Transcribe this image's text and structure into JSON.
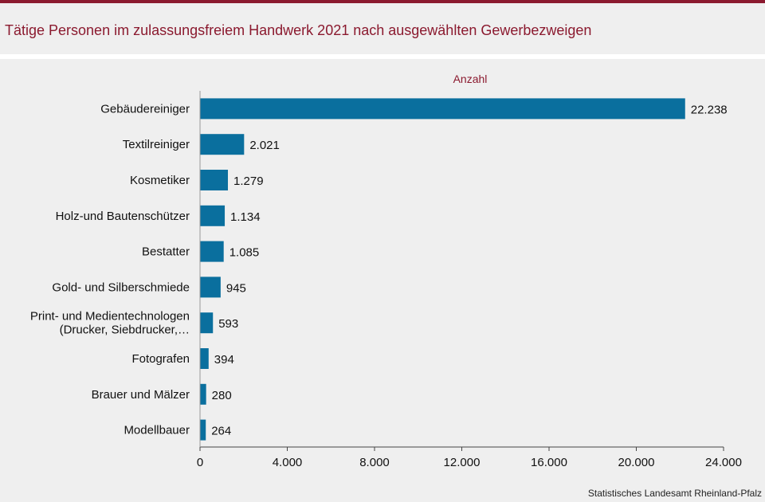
{
  "header": {
    "title": "Tätige Personen im zulassungsfreiem Handwerk 2021 nach ausgewählten Gewerbezweigen"
  },
  "footer": {
    "source": "Statistisches Landesamt Rheinland-Pfalz"
  },
  "colors": {
    "bar": "#0a6f9e",
    "accent": "#8b1a2f"
  },
  "chart_data": {
    "type": "bar",
    "orientation": "horizontal",
    "title": "Tätige Personen im zulassungsfreiem Handwerk 2021 nach ausgewählten Gewerbezweigen",
    "series_label": "Anzahl",
    "categories": [
      [
        "Gebäudereiniger"
      ],
      [
        "Textilreiniger"
      ],
      [
        "Kosmetiker"
      ],
      [
        "Holz-und Bautenschützer"
      ],
      [
        "Bestatter"
      ],
      [
        "Gold- und Silberschmiede"
      ],
      [
        "Print- und Medientechnologen",
        "(Drucker, Siebdrucker,…"
      ],
      [
        "Fotografen"
      ],
      [
        "Brauer und Mälzer"
      ],
      [
        "Modellbauer"
      ]
    ],
    "values": [
      22238,
      2021,
      1279,
      1134,
      1085,
      945,
      593,
      394,
      280,
      264
    ],
    "value_labels": [
      "22.238",
      "2.021",
      "1.279",
      "1.134",
      "1.085",
      "945",
      "593",
      "394",
      "280",
      "264"
    ],
    "xlim": [
      0,
      24000
    ],
    "xticks": [
      0,
      4000,
      8000,
      12000,
      16000,
      20000,
      24000
    ],
    "xtick_labels": [
      "0",
      "4.000",
      "8.000",
      "12.000",
      "16.000",
      "20.000",
      "24.000"
    ],
    "grid": false
  }
}
